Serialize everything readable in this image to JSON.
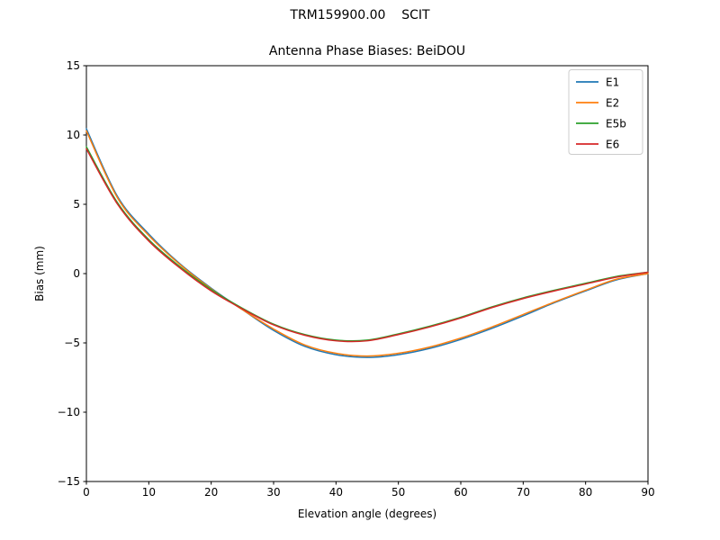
{
  "suptitle": "TRM159900.00    SCIT",
  "chart_data": {
    "type": "line",
    "title": "Antenna Phase Biases: BeiDOU",
    "xlabel": "Elevation angle (degrees)",
    "ylabel": "Bias (mm)",
    "xlim": [
      0,
      90
    ],
    "ylim": [
      -15,
      15
    ],
    "xticks": [
      0,
      10,
      20,
      30,
      40,
      50,
      60,
      70,
      80,
      90
    ],
    "yticks": [
      -15,
      -10,
      -5,
      0,
      5,
      10,
      15
    ],
    "grid": false,
    "legend_position": "upper right",
    "x": [
      0,
      5,
      10,
      15,
      20,
      25,
      30,
      35,
      40,
      45,
      50,
      55,
      60,
      65,
      70,
      75,
      80,
      85,
      90
    ],
    "series": [
      {
        "name": "E1",
        "color": "#1f77b4",
        "values": [
          10.45,
          5.55,
          2.85,
          0.7,
          -1.05,
          -2.6,
          -4.1,
          -5.25,
          -5.85,
          -6.05,
          -5.85,
          -5.4,
          -4.75,
          -3.95,
          -3.05,
          -2.1,
          -1.25,
          -0.45,
          0.0
        ]
      },
      {
        "name": "E2",
        "color": "#ff7f0e",
        "values": [
          10.3,
          5.45,
          2.75,
          0.65,
          -1.1,
          -2.6,
          -4.0,
          -5.15,
          -5.75,
          -5.95,
          -5.75,
          -5.3,
          -4.65,
          -3.85,
          -2.95,
          -2.05,
          -1.2,
          -0.4,
          0.0
        ]
      },
      {
        "name": "E5b",
        "color": "#2ca02c",
        "values": [
          9.15,
          5.1,
          2.45,
          0.5,
          -1.15,
          -2.5,
          -3.65,
          -4.4,
          -4.8,
          -4.8,
          -4.35,
          -3.8,
          -3.15,
          -2.4,
          -1.75,
          -1.2,
          -0.7,
          -0.2,
          0.1
        ]
      },
      {
        "name": "E6",
        "color": "#d62728",
        "values": [
          9.0,
          5.0,
          2.35,
          0.4,
          -1.25,
          -2.55,
          -3.7,
          -4.45,
          -4.85,
          -4.85,
          -4.4,
          -3.85,
          -3.2,
          -2.45,
          -1.8,
          -1.25,
          -0.75,
          -0.25,
          0.1
        ]
      }
    ]
  }
}
